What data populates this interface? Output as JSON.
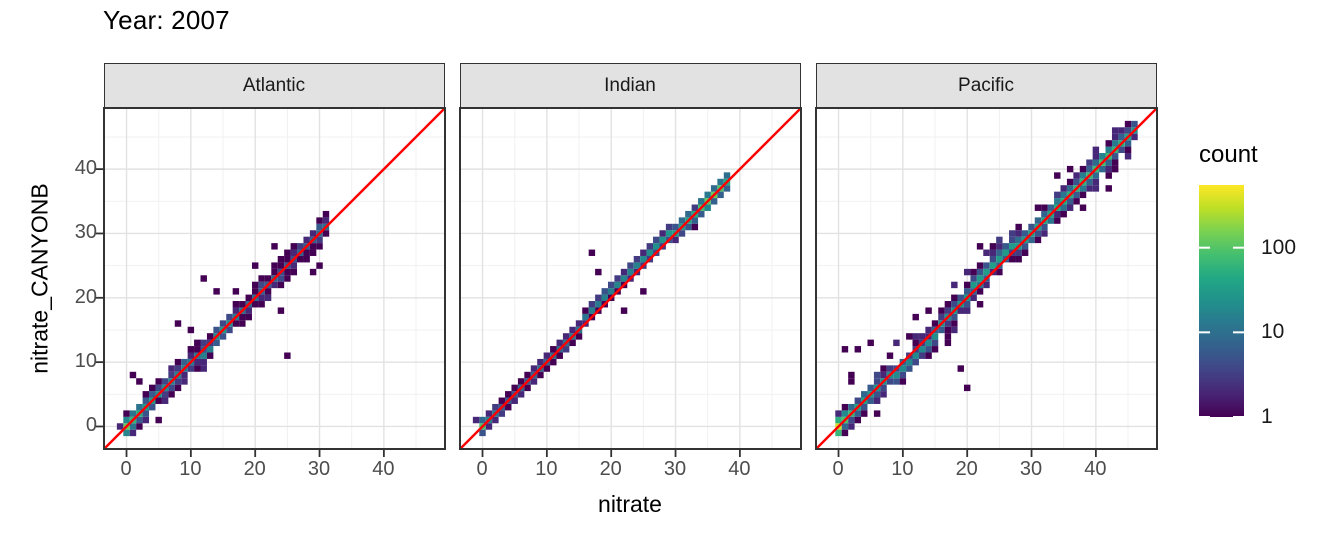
{
  "title": "Year: 2007",
  "chart_data": {
    "type": "heatmap",
    "subtype": "geom_bin2d faceted scatter of predicted vs observed nitrate",
    "title": "Year: 2007",
    "xlabel": "nitrate",
    "ylabel": "nitrate_CANYONB",
    "axis_range": [
      -3.5,
      49.5
    ],
    "major_ticks": [
      0,
      10,
      20,
      30,
      40
    ],
    "minor_ticks": [
      5,
      15,
      25,
      35,
      45
    ],
    "tick_labels": [
      "0",
      "10",
      "20",
      "30",
      "40"
    ],
    "bin_width": 1,
    "grid": true,
    "identity_line": {
      "slope": 1,
      "intercept": 0,
      "color": "#FF0000"
    },
    "legend": {
      "title": "count",
      "position": "right",
      "scale": "log10",
      "max_count": 550,
      "ticks": [
        {
          "value": 100,
          "label": "100"
        },
        {
          "value": 10,
          "label": "10"
        },
        {
          "value": 1,
          "label": "1"
        }
      ]
    },
    "colors": {
      "panel_bg": "#FFFFFF",
      "grid_major": "#E2E2E2",
      "grid_minor": "#F1F1F1",
      "panel_border": "#333333",
      "strip_fill": "#E2E2E2",
      "strip_text": "#1A1A1A",
      "tick_mark": "#333333",
      "tick_text": "#4D4D4D",
      "identity_line": "#FF0000",
      "viridis_stops": [
        [
          0.0,
          "#440154"
        ],
        [
          0.1,
          "#482475"
        ],
        [
          0.2,
          "#414487"
        ],
        [
          0.3,
          "#355F8D"
        ],
        [
          0.4,
          "#2A788E"
        ],
        [
          0.5,
          "#21918C"
        ],
        [
          0.6,
          "#22A884"
        ],
        [
          0.7,
          "#44BF70"
        ],
        [
          0.8,
          "#7AD151"
        ],
        [
          0.9,
          "#BDDF26"
        ],
        [
          1.0,
          "#FDE725"
        ]
      ]
    },
    "facets": [
      {
        "label": "Atlantic",
        "data_range": [
          0,
          30.5
        ],
        "seed": 11,
        "scatter_sigma": 1.5,
        "scatter_per_unit": 3.0,
        "diag_profile": [
          [
            0,
            130
          ],
          [
            1,
            60
          ],
          [
            3,
            30
          ],
          [
            5,
            22
          ],
          [
            7,
            18
          ],
          [
            9,
            14
          ],
          [
            11,
            12
          ],
          [
            13,
            14
          ],
          [
            15,
            28
          ],
          [
            16,
            22
          ],
          [
            17,
            10
          ],
          [
            19,
            8
          ],
          [
            21,
            7
          ],
          [
            23,
            5
          ],
          [
            25,
            4
          ],
          [
            27,
            5
          ],
          [
            29,
            7
          ],
          [
            30,
            9
          ]
        ],
        "band_offset": [
          [
            0,
            0
          ],
          [
            9,
            -0.3
          ],
          [
            13,
            -0.6
          ],
          [
            16,
            -0.2
          ],
          [
            18,
            0.3
          ],
          [
            21,
            0.2
          ],
          [
            25,
            0
          ],
          [
            30,
            0
          ]
        ],
        "outliers": [
          [
            24.6,
            10.7
          ],
          [
            24.1,
            17.9
          ],
          [
            12.1,
            22.7
          ],
          [
            8.3,
            15.6
          ],
          [
            10.2,
            15.4
          ],
          [
            5.2,
            0.7
          ],
          [
            28.7,
            24.4
          ],
          [
            30.3,
            24.6
          ],
          [
            23.4,
            28.3
          ],
          [
            13.7,
            21.2
          ],
          [
            1.3,
            8.0
          ],
          [
            2.3,
            7.2
          ],
          [
            19.9,
            24.5
          ]
        ]
      },
      {
        "label": "Indian",
        "data_range": [
          0,
          38
        ],
        "seed": 23,
        "scatter_sigma": 0.85,
        "scatter_per_unit": 1.3,
        "diag_profile": [
          [
            0,
            90
          ],
          [
            1,
            15
          ],
          [
            3,
            6
          ],
          [
            5,
            5
          ],
          [
            7,
            6
          ],
          [
            9,
            7
          ],
          [
            11,
            8
          ],
          [
            13,
            8
          ],
          [
            15,
            10
          ],
          [
            17,
            12
          ],
          [
            19,
            14
          ],
          [
            21,
            16
          ],
          [
            23,
            14
          ],
          [
            25,
            18
          ],
          [
            27,
            22
          ],
          [
            29,
            26
          ],
          [
            31,
            32
          ],
          [
            33,
            45
          ],
          [
            35,
            110
          ],
          [
            36,
            120
          ],
          [
            37,
            90
          ],
          [
            38,
            45
          ]
        ],
        "band_offset": [
          [
            0,
            0
          ],
          [
            13,
            0.2
          ],
          [
            17,
            0.7
          ],
          [
            20,
            1.1
          ],
          [
            23,
            1.2
          ],
          [
            26,
            0.9
          ],
          [
            30,
            0.4
          ],
          [
            34,
            0.2
          ],
          [
            38,
            0.3
          ]
        ],
        "outliers": [
          [
            17.1,
            26.7
          ],
          [
            21.6,
            17.8
          ],
          [
            24.9,
            21.1
          ],
          [
            17.9,
            23.9
          ],
          [
            33.1,
            30.9
          ]
        ]
      },
      {
        "label": "Pacific",
        "data_range": [
          0,
          46
        ],
        "seed": 37,
        "scatter_sigma": 2.1,
        "scatter_per_unit": 4.2,
        "diag_profile": [
          [
            0,
            350
          ],
          [
            1,
            90
          ],
          [
            3,
            40
          ],
          [
            5,
            28
          ],
          [
            7,
            22
          ],
          [
            9,
            20
          ],
          [
            11,
            18
          ],
          [
            13,
            18
          ],
          [
            15,
            20
          ],
          [
            17,
            22
          ],
          [
            19,
            25
          ],
          [
            21,
            28
          ],
          [
            23,
            32
          ],
          [
            25,
            30
          ],
          [
            27,
            28
          ],
          [
            29,
            30
          ],
          [
            31,
            34
          ],
          [
            33,
            40
          ],
          [
            35,
            48
          ],
          [
            37,
            55
          ],
          [
            39,
            65
          ],
          [
            41,
            75
          ],
          [
            43,
            60
          ],
          [
            45,
            40
          ],
          [
            46,
            25
          ]
        ],
        "band_offset": [
          [
            0,
            0
          ],
          [
            7,
            -0.4
          ],
          [
            12,
            -0.8
          ],
          [
            17,
            -0.4
          ],
          [
            21,
            0.6
          ],
          [
            24,
            1.1
          ],
          [
            27,
            0.6
          ],
          [
            31,
            0
          ],
          [
            40,
            0
          ],
          [
            46,
            0
          ]
        ],
        "outliers": [
          [
            1.4,
            12.1
          ],
          [
            3.2,
            12.3
          ],
          [
            5.1,
            12.9
          ],
          [
            2.1,
            7.9
          ],
          [
            19.5,
            5.9
          ],
          [
            19.1,
            9.2
          ],
          [
            13.6,
            17.6
          ],
          [
            12.4,
            17.1
          ],
          [
            21.6,
            27.9
          ],
          [
            23.5,
            28.2
          ],
          [
            34.1,
            38.6
          ],
          [
            36.6,
            38.8
          ],
          [
            42.1,
            36.6
          ],
          [
            16.9,
            13.4
          ],
          [
            44.9,
            41.9
          ]
        ]
      }
    ]
  }
}
